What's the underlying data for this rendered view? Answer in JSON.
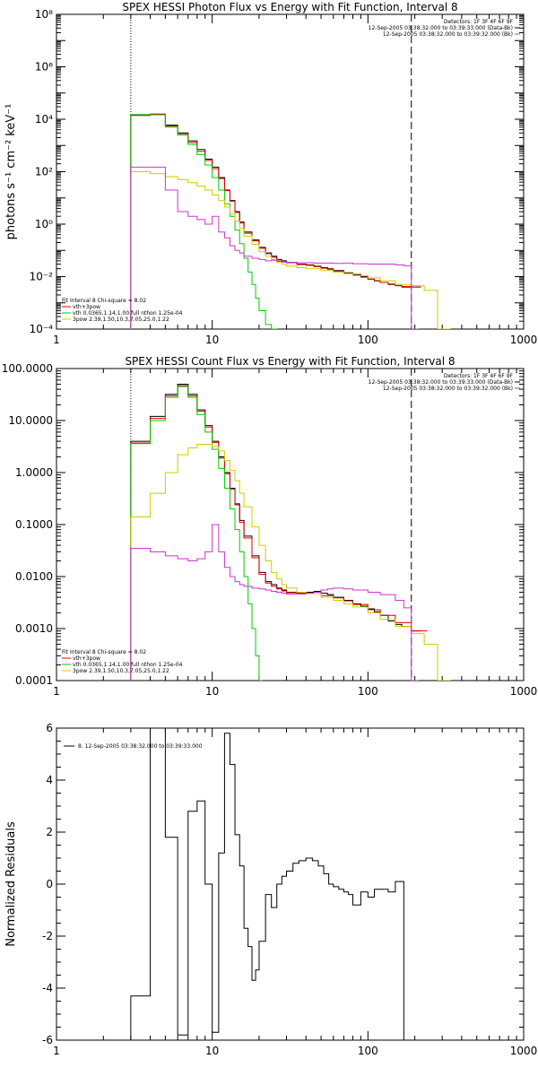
{
  "chart_data": [
    {
      "type": "line",
      "title": "SPEX HESSI Photon Flux vs Energy with Fit Function, Interval 8",
      "ylabel": "photons s⁻¹ cm⁻² keV⁻¹",
      "xlabel": "",
      "xscale": "log",
      "yscale": "log",
      "xlim": [
        1,
        1000
      ],
      "ylim": [
        0.0001,
        100000000
      ],
      "x_ticks": [
        1,
        10,
        100,
        1000
      ],
      "x_tick_labels": [
        "1",
        "10",
        "100",
        "1000"
      ],
      "y_ticks": [
        0.0001,
        0.01,
        1,
        100,
        10000,
        1000000,
        100000000
      ],
      "y_tick_labels": [
        "10⁻⁴",
        "10⁻²",
        "10⁰",
        "10²",
        "10⁴",
        "10⁶",
        "10⁸"
      ],
      "vlines": [
        {
          "x": 3.0,
          "style": "dotted"
        },
        {
          "x": 190,
          "style": "dashed"
        }
      ],
      "legend_top": [
        "Detectors: 1F 3F 4F 6F 9F",
        "12-Sep-2005 03:38:32.000 to 03:39:33.000 (Data-Bk)",
        "12-Sep-2005 03:38:32.000 to 03:39:32.000 (Bk)"
      ],
      "legend_top_colors": [
        "#000000",
        "#000000",
        "#cc33cc"
      ],
      "legend_bottom": [
        "Fit Interval  8    Chi-square = 8.02",
        "vth+3pow",
        "vth 0.0365,1.14,1.00  full nthon 1.25e-04",
        "3pow  2.39,1.50,10.3,7.05,25.0,1.22"
      ],
      "legend_bottom_colors": [
        "#000000",
        "#dd0000",
        "#00cc00",
        "#cccc00"
      ],
      "series": [
        {
          "color": "#000000",
          "x": [
            3.0,
            4.0,
            5.0,
            6.0,
            7.0,
            8.0,
            9.0,
            10.0,
            11.0,
            12.0,
            13.0,
            14.0,
            15.0,
            16.0,
            18.0,
            20.0,
            22.0,
            24.0,
            26.0,
            28.0,
            30.0,
            35.0,
            40.0,
            45.0,
            50.0,
            55.0,
            60.0,
            70.0,
            80.0,
            90.0,
            100.0,
            110.0,
            120.0,
            135.0,
            150.0,
            165.0,
            190.0
          ],
          "y": [
            15000,
            16000,
            6000,
            3000,
            1500,
            700,
            300,
            150,
            60,
            20,
            8,
            3,
            1.2,
            0.5,
            0.25,
            0.13,
            0.08,
            0.06,
            0.045,
            0.04,
            0.035,
            0.03,
            0.028,
            0.025,
            0.022,
            0.02,
            0.017,
            0.014,
            0.012,
            0.01,
            0.008,
            0.007,
            0.006,
            0.005,
            0.0045,
            0.004,
            0.004
          ]
        },
        {
          "color": "#dd0000",
          "x": [
            3.0,
            4.0,
            5.0,
            6.0,
            7.0,
            8.0,
            9.0,
            10.0,
            11.0,
            12.0,
            13.0,
            14.0,
            15.0,
            16.0,
            18.0,
            20.0,
            22.0,
            24.0,
            26.0,
            28.0,
            30.0,
            35.0,
            40.0,
            45.0,
            50.0,
            55.0,
            60.0,
            70.0,
            80.0,
            90.0,
            100.0,
            110.0,
            120.0,
            135.0,
            150.0,
            165.0,
            190.0
          ],
          "y": [
            14000,
            15000,
            5500,
            2800,
            1300,
            600,
            270,
            130,
            55,
            19,
            7.5,
            2.8,
            1.1,
            0.45,
            0.23,
            0.12,
            0.075,
            0.055,
            0.043,
            0.038,
            0.034,
            0.029,
            0.027,
            0.024,
            0.021,
            0.019,
            0.016,
            0.013,
            0.011,
            0.0095,
            0.008,
            0.0068,
            0.006,
            0.0052,
            0.0046,
            0.0042,
            0.004
          ]
        },
        {
          "color": "#00cc00",
          "x": [
            3.0,
            4.0,
            5.0,
            6.0,
            7.0,
            8.0,
            9.0,
            10.0,
            11.0,
            12.0,
            13.0,
            14.0,
            15.0,
            16.0,
            17.0,
            18.0,
            19.0,
            20.0,
            22.0,
            24.0
          ],
          "y": [
            15000,
            16000,
            5000,
            2500,
            1100,
            450,
            180,
            60,
            20,
            6,
            2,
            0.6,
            0.18,
            0.05,
            0.015,
            0.005,
            0.0015,
            0.0005,
            0.00015,
            0.0001
          ]
        },
        {
          "color": "#cccc00",
          "x": [
            3.0,
            4.0,
            5.0,
            6.0,
            7.0,
            8.0,
            9.0,
            10.0,
            11.0,
            12.0,
            13.0,
            14.0,
            15.0,
            16.0,
            18.0,
            20.0,
            22.0,
            24.0,
            26.0,
            28.0,
            30.0,
            35.0,
            40.0,
            50.0,
            60.0,
            70.0,
            80.0,
            100.0,
            120.0,
            150.0,
            190.0,
            230.0,
            280.0
          ],
          "y": [
            100,
            85,
            65,
            50,
            38,
            28,
            20,
            13,
            8,
            4.5,
            2.5,
            1.3,
            0.7,
            0.35,
            0.17,
            0.09,
            0.06,
            0.045,
            0.035,
            0.03,
            0.025,
            0.022,
            0.02,
            0.017,
            0.015,
            0.013,
            0.011,
            0.009,
            0.007,
            0.005,
            0.0045,
            0.003,
            0.0001
          ]
        },
        {
          "color": "#cc33cc",
          "x": [
            3.0,
            4.0,
            5.0,
            6.0,
            7.0,
            8.0,
            9.0,
            10.0,
            11.0,
            12.0,
            13.0,
            14.0,
            15.0,
            16.0,
            18.0,
            20.0,
            22.0,
            24.0,
            26.0,
            28.0,
            30.0,
            35.0,
            40.0,
            45.0,
            50.0,
            60.0,
            70.0,
            80.0,
            100.0,
            120.0,
            150.0,
            170.0,
            190.0
          ],
          "y": [
            150,
            150,
            20,
            3,
            2,
            1.5,
            1.0,
            2.0,
            0.5,
            0.3,
            0.15,
            0.1,
            0.08,
            0.06,
            0.05,
            0.045,
            0.04,
            0.042,
            0.038,
            0.036,
            0.035,
            0.034,
            0.034,
            0.033,
            0.033,
            0.032,
            0.033,
            0.031,
            0.03,
            0.03,
            0.028,
            0.026,
            0.0001
          ]
        }
      ]
    },
    {
      "type": "line",
      "title": "SPEX HESSI Count Flux vs Energy with Fit Function, Interval 8",
      "ylabel": "",
      "xlabel": "",
      "xscale": "log",
      "yscale": "log",
      "xlim": [
        1,
        1000
      ],
      "ylim": [
        0.0001,
        100
      ],
      "x_ticks": [
        1,
        10,
        100,
        1000
      ],
      "x_tick_labels": [
        "1",
        "10",
        "100",
        "1000"
      ],
      "y_ticks": [
        0.0001,
        0.001,
        0.01,
        0.1,
        1,
        10,
        100
      ],
      "y_tick_labels": [
        "0.0001",
        "0.0010",
        "0.0100",
        "0.1000",
        "1.0000",
        "10.0000",
        "100.0000"
      ],
      "vlines": [
        {
          "x": 3.0,
          "style": "dotted"
        },
        {
          "x": 190,
          "style": "dashed"
        }
      ],
      "legend_top": [
        "Detectors: 1F 3F 4F 6F 9F",
        "12-Sep-2005 03:38:32.000 to 03:39:33.000 (Data-Bk)",
        "12-Sep-2005 03:38:32.000 to 03:39:32.000 (Bk)"
      ],
      "legend_top_colors": [
        "#000000",
        "#000000",
        "#cc33cc"
      ],
      "legend_bottom": [
        "Fit Interval  8    Chi-square = 8.02",
        "vth+3pow",
        "vth 0.0365,1.14,1.00  full nthon 1.25e-04",
        "3pow  2.39,1.50,10.3,7.05,25.0,1.22"
      ],
      "legend_bottom_colors": [
        "#000000",
        "#dd0000",
        "#00cc00",
        "#cccc00"
      ],
      "series": [
        {
          "color": "#000000",
          "x": [
            3.0,
            4.0,
            5.0,
            6.0,
            7.0,
            8.0,
            9.0,
            10.0,
            11.0,
            12.0,
            13.0,
            14.0,
            15.0,
            16.0,
            18.0,
            20.0,
            22.0,
            24.0,
            26.0,
            28.0,
            30.0,
            35.0,
            40.0,
            45.0,
            50.0,
            55.0,
            60.0,
            70.0,
            80.0,
            90.0,
            100.0,
            110.0,
            120.0,
            135.0,
            150.0,
            165.0,
            190.0
          ],
          "y": [
            4.0,
            12,
            32,
            50,
            32,
            16,
            8,
            4,
            2,
            1.0,
            0.5,
            0.25,
            0.12,
            0.06,
            0.025,
            0.012,
            0.008,
            0.007,
            0.006,
            0.0055,
            0.005,
            0.005,
            0.005,
            0.0052,
            0.0048,
            0.0045,
            0.004,
            0.0035,
            0.003,
            0.0027,
            0.0024,
            0.0021,
            0.0018,
            0.0014,
            0.0012,
            0.0011,
            0.0009
          ]
        },
        {
          "color": "#dd0000",
          "x": [
            3.0,
            4.0,
            5.0,
            6.0,
            7.0,
            8.0,
            9.0,
            10.0,
            11.0,
            12.0,
            13.0,
            14.0,
            15.0,
            16.0,
            18.0,
            20.0,
            22.0,
            24.0,
            26.0,
            28.0,
            30.0,
            35.0,
            40.0,
            50.0,
            60.0,
            70.0,
            80.0,
            100.0,
            120.0,
            150.0,
            190.0
          ],
          "y": [
            3.7,
            11,
            30,
            47,
            30,
            15,
            7.5,
            3.8,
            1.9,
            0.95,
            0.48,
            0.24,
            0.11,
            0.055,
            0.023,
            0.011,
            0.0075,
            0.0065,
            0.0058,
            0.0053,
            0.0049,
            0.0048,
            0.0047,
            0.0043,
            0.0039,
            0.0034,
            0.0029,
            0.0023,
            0.0018,
            0.0013,
            0.0009
          ]
        },
        {
          "color": "#00cc00",
          "x": [
            3.0,
            4.0,
            5.0,
            6.0,
            7.0,
            8.0,
            9.0,
            10.0,
            11.0,
            12.0,
            13.0,
            14.0,
            15.0,
            16.0,
            17.0,
            18.0,
            19.0,
            20.0
          ],
          "y": [
            3.6,
            10,
            28,
            45,
            28,
            13,
            6,
            2.8,
            1.2,
            0.5,
            0.2,
            0.08,
            0.03,
            0.01,
            0.003,
            0.001,
            0.0003,
            0.0001
          ]
        },
        {
          "color": "#cccc00",
          "x": [
            3.0,
            4.0,
            5.0,
            6.0,
            7.0,
            8.0,
            9.0,
            10.0,
            11.0,
            12.0,
            13.0,
            14.0,
            15.0,
            16.0,
            18.0,
            20.0,
            22.0,
            24.0,
            26.0,
            28.0,
            30.0,
            35.0,
            40.0,
            50.0,
            60.0,
            70.0,
            80.0,
            100.0,
            120.0,
            150.0,
            190.0,
            230.0,
            280.0
          ],
          "y": [
            0.14,
            0.4,
            1.0,
            2.2,
            3.0,
            3.5,
            3.5,
            3.2,
            2.6,
            1.7,
            1.1,
            0.7,
            0.4,
            0.22,
            0.09,
            0.04,
            0.02,
            0.012,
            0.009,
            0.007,
            0.006,
            0.005,
            0.0047,
            0.004,
            0.0035,
            0.003,
            0.0026,
            0.002,
            0.0015,
            0.0011,
            0.0008,
            0.0005,
            0.0001
          ]
        },
        {
          "color": "#cc33cc",
          "x": [
            3.0,
            4.0,
            5.0,
            6.0,
            7.0,
            8.0,
            9.0,
            10.0,
            11.0,
            12.0,
            13.0,
            14.0,
            15.0,
            16.0,
            18.0,
            20.0,
            22.0,
            24.0,
            26.0,
            28.0,
            30.0,
            35.0,
            40.0,
            45.0,
            50.0,
            55.0,
            60.0,
            70.0,
            80.0,
            100.0,
            120.0,
            150.0,
            170.0,
            190.0
          ],
          "y": [
            0.035,
            0.03,
            0.025,
            0.022,
            0.02,
            0.022,
            0.03,
            0.1,
            0.03,
            0.015,
            0.01,
            0.008,
            0.007,
            0.0065,
            0.006,
            0.0058,
            0.0055,
            0.0052,
            0.005,
            0.0048,
            0.0046,
            0.0046,
            0.0048,
            0.005,
            0.0055,
            0.0058,
            0.006,
            0.0058,
            0.0055,
            0.005,
            0.0045,
            0.0035,
            0.0025,
            0.0001
          ]
        }
      ]
    },
    {
      "type": "line",
      "title": "",
      "ylabel": "Normalized Residuals",
      "xlabel": "",
      "xscale": "log",
      "yscale": "linear",
      "xlim": [
        1,
        1000
      ],
      "ylim": [
        -6,
        6
      ],
      "x_ticks": [
        1,
        10,
        100,
        1000
      ],
      "x_tick_labels": [
        "1",
        "10",
        "100",
        "1000"
      ],
      "y_ticks": [
        -6,
        -4,
        -2,
        0,
        2,
        4,
        6
      ],
      "y_tick_labels": [
        "-6",
        "-4",
        "-2",
        "0",
        "2",
        "4",
        "6"
      ],
      "legend": "8. 12-Sep-2005 03:38:32.000 to 03:39:33.000",
      "steps": {
        "color": "#000000",
        "edges": [
          3.0,
          4.0,
          5.0,
          6.0,
          7.0,
          8.0,
          9.0,
          10.0,
          11.0,
          12.0,
          13.0,
          14.0,
          15.0,
          16.0,
          17.0,
          18.0,
          19.0,
          20.0,
          22.0,
          24.0,
          26.0,
          28.0,
          30.0,
          33.0,
          36.0,
          40.0,
          44.0,
          48.0,
          52.0,
          56.0,
          60.0,
          65.0,
          70.0,
          75.0,
          80.0,
          90.0,
          100.0,
          110.0,
          120.0,
          135.0,
          150.0,
          170.0,
          190.0
        ],
        "values": [
          -4.3,
          6.0,
          1.8,
          -5.8,
          2.8,
          3.2,
          0.0,
          -5.7,
          1.2,
          5.8,
          4.6,
          1.9,
          0.7,
          -1.7,
          -2.4,
          -3.7,
          -3.3,
          -2.2,
          -0.4,
          -0.9,
          0.0,
          0.3,
          0.5,
          0.8,
          0.9,
          1.0,
          0.9,
          0.7,
          0.4,
          0.0,
          -0.1,
          -0.2,
          -0.3,
          -0.4,
          -0.8,
          -0.3,
          -0.5,
          -0.2,
          -0.2,
          -0.3,
          0.1,
          -6.0
        ]
      }
    }
  ]
}
